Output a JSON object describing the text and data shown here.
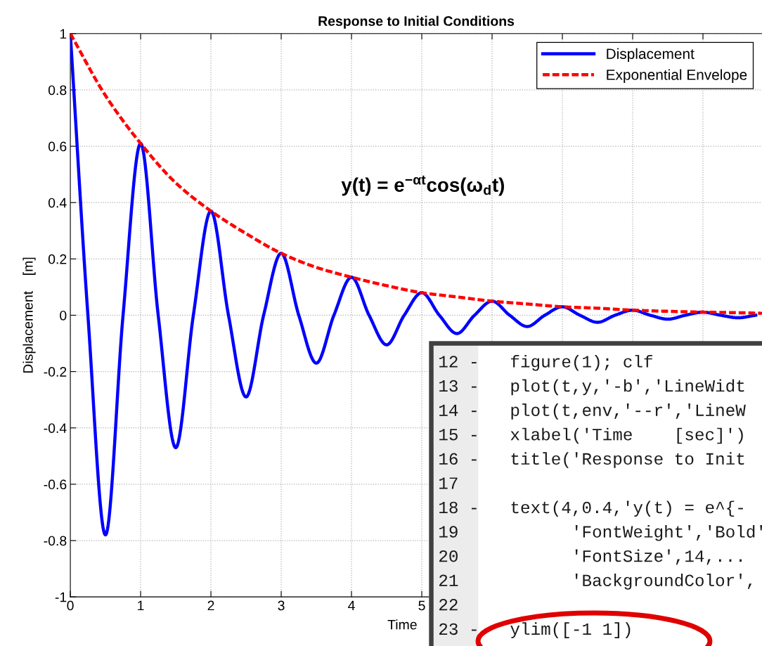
{
  "chart_data": [
    {
      "type": "line",
      "title": "Response to Initial Conditions",
      "xlabel": "Time",
      "ylabel": "Displacement    [m]",
      "annotations": [
        "y(t) = e$^{−αt}$cos(ω$_{d}$t)"
      ],
      "xlim": [
        0,
        9.84
      ],
      "xticks": [
        0,
        1,
        2,
        3,
        4,
        5,
        {
          "value": 6,
          "label": null
        },
        {
          "value": 7,
          "label": null
        },
        {
          "value": 8,
          "label": null
        },
        {
          "value": 9,
          "label": null
        }
      ],
      "ylim": [
        -1,
        1
      ],
      "yticks": [
        -1,
        -0.8,
        -0.6,
        -0.4,
        -0.2,
        0,
        0.2,
        0.4,
        0.6,
        0.8,
        1
      ],
      "grid": true,
      "legend": "top right",
      "marker": "none",
      "series": [
        {
          "name": "Displacement",
          "color": "#0000ff",
          "line_style": "solid",
          "x": [
            0,
            0.25,
            0.5,
            0.75,
            1,
            1.25,
            1.5,
            1.75,
            2,
            2.25,
            2.5,
            2.75,
            3,
            3.25,
            3.5,
            3.75,
            4,
            4.25,
            4.5,
            4.75,
            5,
            5.25,
            5.5,
            5.75,
            6,
            6.25,
            6.5,
            6.75,
            7,
            7.25,
            7.5,
            7.75,
            8,
            8.25,
            8.5,
            8.75,
            9,
            9.25,
            9.5,
            9.75
          ],
          "values": [
            1,
            0,
            -0.78,
            0,
            0.61,
            0,
            -0.47,
            0,
            0.37,
            0,
            -0.29,
            0,
            0.22,
            0,
            -0.17,
            0,
            0.135,
            0,
            -0.105,
            0,
            0.08,
            0,
            -0.065,
            0,
            0.05,
            0,
            -0.04,
            0,
            0.03,
            0,
            -0.025,
            0,
            0.018,
            0,
            -0.014,
            0,
            0.011,
            0,
            -0.009,
            0
          ]
        },
        {
          "name": "Exponential Envelope",
          "color": "#ff0000",
          "line_style": "dashed",
          "x": [
            0,
            0.5,
            1,
            1.5,
            2,
            2.5,
            3,
            3.5,
            4,
            4.5,
            5,
            5.5,
            6,
            6.5,
            7,
            7.5,
            8,
            8.5,
            9,
            9.5,
            9.84
          ],
          "values": [
            1,
            0.78,
            0.61,
            0.47,
            0.37,
            0.29,
            0.22,
            0.17,
            0.135,
            0.105,
            0.08,
            0.065,
            0.05,
            0.04,
            0.03,
            0.025,
            0.018,
            0.014,
            0.011,
            0.009,
            0.007
          ]
        }
      ]
    },
    {
      "type": "other",
      "annotations": [
        "12 -   figure(1); clf",
        "13 -   plot(t,y,'-b','LineWidt",
        "14 -   plot(t,env,'--r','LineW",
        "15 -   xlabel('Time    [sec]')",
        "16 -   title('Response to Init",
        "17",
        "18 -   text(4,0.4,'y(t) = e^{-",
        "19           'FontWeight','Bold'",
        "20           'FontSize',14,...",
        "21           'BackgroundColor',",
        "22",
        "23 -   ylim([-1 1])"
      ]
    }
  ]
}
